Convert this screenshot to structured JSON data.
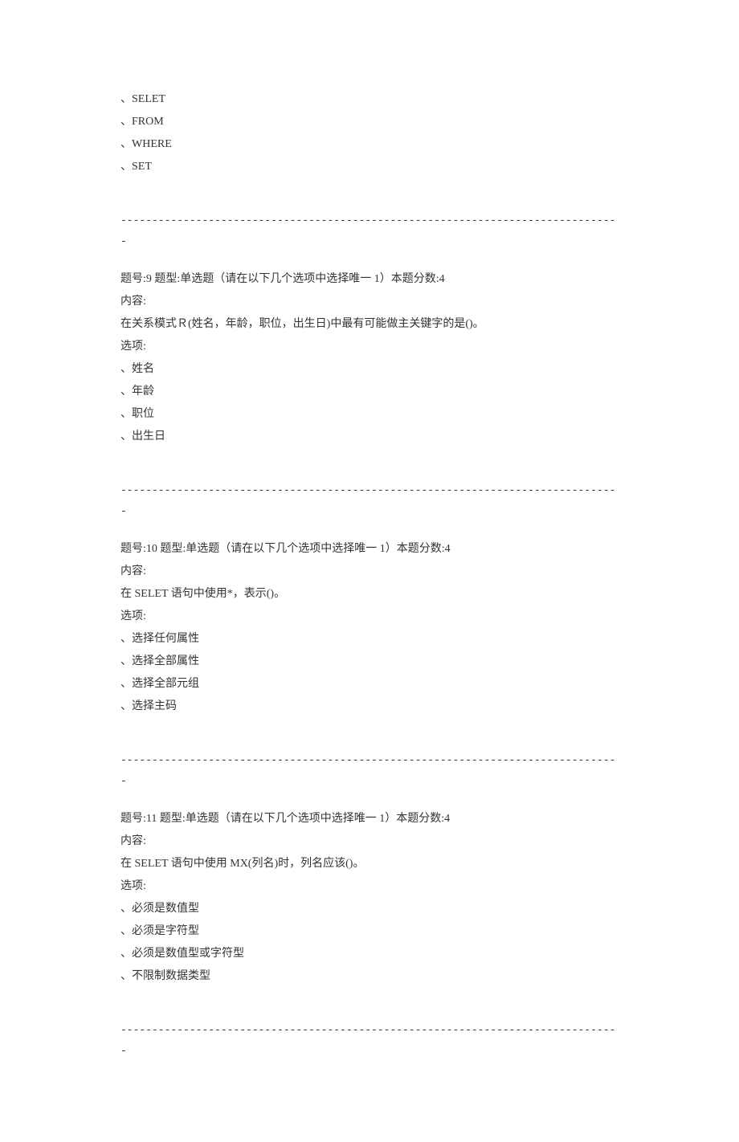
{
  "first_options": [
    "、SELET",
    "、FROM",
    "、WHERE",
    "、SET"
  ],
  "divider": "--------------------------------------------------------------------------------",
  "questions": [
    {
      "header": "题号:9 题型:单选题（请在以下几个选项中选择唯一 1）本题分数:4",
      "content_label": "内容:",
      "content": "在关系模式Ｒ(姓名，年龄，职位，出生日)中最有可能做主关键字的是()。",
      "options_label": "选项:",
      "options": [
        "、姓名",
        "、年龄",
        "、职位",
        "、出生日"
      ]
    },
    {
      "header": "题号:10 题型:单选题（请在以下几个选项中选择唯一 1）本题分数:4",
      "content_label": "内容:",
      "content": "在 SELET 语句中使用*，表示()。",
      "options_label": "选项:",
      "options": [
        "、选择任何属性",
        "、选择全部属性",
        "、选择全部元组",
        "、选择主码"
      ]
    },
    {
      "header": "题号:11 题型:单选题（请在以下几个选项中选择唯一 1）本题分数:4",
      "content_label": "内容:",
      "content": "在 SELET 语句中使用 MX(列名)时，列名应该()。",
      "options_label": "选项:",
      "options": [
        "、必须是数值型",
        "、必须是字符型",
        "、必须是数值型或字符型",
        "、不限制数据类型"
      ]
    }
  ]
}
